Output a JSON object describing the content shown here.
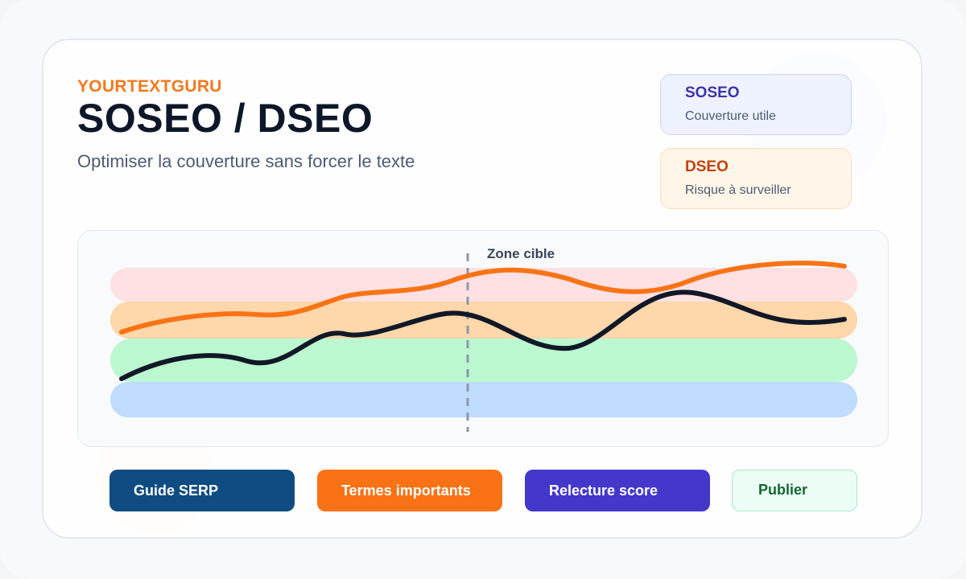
{
  "header": {
    "brand": "YOURTEXTGURU",
    "title": "SOSEO / DSEO",
    "subtitle": "Optimiser la couverture sans forcer le texte"
  },
  "legend": {
    "soseo": {
      "title": "SOSEO",
      "description": "Couverture utile"
    },
    "dseo": {
      "title": "DSEO",
      "description": "Risque à surveiller"
    }
  },
  "chart_data": {
    "type": "line",
    "annotation": "Zone cible",
    "bands": [
      "#ffe1e3",
      "#fed7aa",
      "#bbf7d0",
      "#bfdbfe"
    ],
    "series": [
      {
        "color": "#f97316"
      },
      {
        "color": "#111827"
      }
    ]
  },
  "actions": {
    "guide_serp": "Guide SERP",
    "termes_importants": "Termes importants",
    "relecture_score": "Relecture score",
    "publier": "Publier"
  },
  "colors": {
    "brand_orange": "#f2791d",
    "title_dark": "#0d1728",
    "soseo_accent": "#3d33a6",
    "dseo_accent": "#c2410c"
  }
}
